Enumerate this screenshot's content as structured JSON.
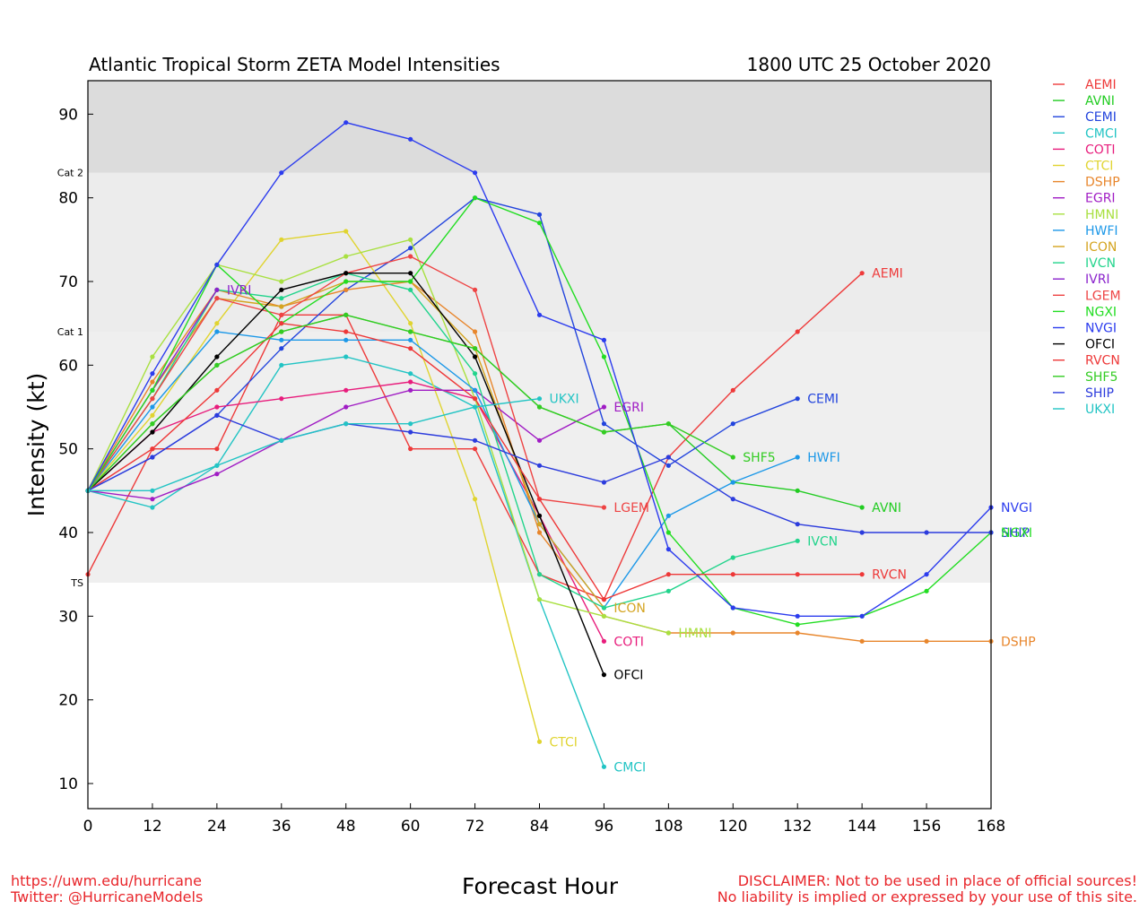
{
  "chart_data": {
    "type": "line",
    "title": "Atlantic Tropical Storm ZETA Model Intensities",
    "subtitle": "1800 UTC 25 October 2020",
    "xlabel": "Forecast Hour",
    "ylabel": "Intensity (kt)",
    "xlim": [
      0,
      168
    ],
    "ylim": [
      7,
      94
    ],
    "xticks": [
      0,
      12,
      24,
      36,
      48,
      60,
      72,
      84,
      96,
      108,
      120,
      132,
      144,
      156,
      168
    ],
    "yticks": [
      10,
      20,
      30,
      40,
      50,
      60,
      70,
      80,
      90
    ],
    "grid": false,
    "legend": "right",
    "bands": [
      {
        "label": "TS",
        "from": 34,
        "to": 64,
        "color": "#efefef"
      },
      {
        "label": "Cat 1",
        "from": 64,
        "to": 83,
        "color": "#ececec"
      },
      {
        "label": "Cat 2",
        "from": 83,
        "to": 94,
        "color": "#dcdcdc"
      }
    ],
    "category_labels": [
      {
        "text": "TS",
        "y": 34
      },
      {
        "text": "Cat 1",
        "y": 64
      },
      {
        "text": "Cat 2",
        "y": 83
      }
    ],
    "series": [
      {
        "name": "AEMI",
        "color": "#ee3a3a",
        "x": [
          0,
          12,
          24,
          36,
          48,
          60,
          72,
          84,
          96,
          108,
          120,
          132,
          144
        ],
        "values": [
          35,
          50,
          50,
          66,
          66,
          50,
          50,
          35,
          32,
          49,
          57,
          64,
          71
        ]
      },
      {
        "name": "AVNI",
        "color": "#22cc22",
        "x": [
          0,
          12,
          24,
          36,
          48,
          60,
          72,
          84,
          96,
          108,
          120,
          132,
          144
        ],
        "values": [
          45,
          53,
          60,
          64,
          66,
          64,
          62,
          55,
          52,
          53,
          46,
          45,
          43
        ]
      },
      {
        "name": "CEMI",
        "color": "#2244dd",
        "x": [
          0,
          12,
          24,
          36,
          48,
          60,
          72,
          84,
          96,
          108,
          120,
          132
        ],
        "values": [
          45,
          49,
          54,
          62,
          69,
          74,
          80,
          78,
          53,
          48,
          53,
          56
        ]
      },
      {
        "name": "CMCI",
        "color": "#22c4c4",
        "x": [
          0,
          12,
          24,
          36,
          48,
          60,
          72,
          84,
          96
        ],
        "values": [
          45,
          43,
          48,
          60,
          61,
          59,
          55,
          32,
          12
        ]
      },
      {
        "name": "COTI",
        "color": "#e81c7c",
        "x": [
          0,
          12,
          24,
          36,
          48,
          60,
          72,
          84,
          96
        ],
        "values": [
          45,
          52,
          55,
          56,
          57,
          58,
          56,
          42,
          27
        ]
      },
      {
        "name": "CTCI",
        "color": "#e0d430",
        "x": [
          0,
          12,
          24,
          36,
          48,
          60,
          72,
          84
        ],
        "values": [
          45,
          54,
          65,
          75,
          76,
          65,
          44,
          15
        ]
      },
      {
        "name": "DSHP",
        "color": "#e8862c",
        "x": [
          0,
          12,
          24,
          36,
          48,
          60,
          72,
          84,
          96,
          108,
          120,
          132,
          144,
          156,
          168
        ],
        "values": [
          45,
          58,
          69,
          67,
          69,
          70,
          64,
          40,
          30,
          28,
          28,
          28,
          27,
          27,
          27
        ]
      },
      {
        "name": "EGRI",
        "color": "#a01cc4",
        "x": [
          0,
          12,
          24,
          36,
          48,
          60,
          72,
          84,
          96
        ],
        "values": [
          45,
          44,
          47,
          51,
          55,
          57,
          57,
          51,
          55
        ]
      },
      {
        "name": "HMNI",
        "color": "#a8e040",
        "x": [
          0,
          12,
          24,
          36,
          48,
          60,
          72,
          84,
          96,
          108
        ],
        "values": [
          45,
          61,
          72,
          70,
          73,
          75,
          56,
          32,
          30,
          28
        ]
      },
      {
        "name": "HWFI",
        "color": "#1c98e8",
        "x": [
          0,
          12,
          24,
          36,
          48,
          60,
          72,
          84,
          96,
          108,
          120,
          132
        ],
        "values": [
          45,
          55,
          64,
          63,
          63,
          63,
          57,
          41,
          31,
          42,
          46,
          49
        ]
      },
      {
        "name": "ICON",
        "color": "#d4a420",
        "x": [
          0,
          12,
          24,
          36,
          48,
          60,
          72,
          84,
          96
        ],
        "values": [
          45,
          57,
          68,
          67,
          70,
          70,
          62,
          41,
          31
        ]
      },
      {
        "name": "IVCN",
        "color": "#22d48c",
        "x": [
          0,
          12,
          24,
          36,
          48,
          60,
          72,
          84,
          96,
          108,
          120,
          132
        ],
        "values": [
          45,
          56,
          69,
          68,
          71,
          69,
          59,
          35,
          31,
          33,
          37,
          39
        ]
      },
      {
        "name": "IVRI",
        "color": "#8a22cc",
        "x": [
          0,
          12,
          24
        ],
        "values": [
          45,
          57,
          69
        ]
      },
      {
        "name": "LGEM",
        "color": "#ee4444",
        "x": [
          0,
          12,
          24,
          36,
          48,
          60,
          72,
          84,
          96
        ],
        "values": [
          45,
          56,
          68,
          66,
          71,
          73,
          69,
          44,
          43
        ]
      },
      {
        "name": "NGXI",
        "color": "#22dd22",
        "x": [
          0,
          12,
          24,
          36,
          48,
          60,
          72,
          84,
          96,
          108,
          120,
          132,
          144,
          156,
          168
        ],
        "values": [
          45,
          57,
          72,
          65,
          70,
          70,
          80,
          77,
          61,
          40,
          31,
          29,
          30,
          33,
          40
        ]
      },
      {
        "name": "NVGI",
        "color": "#2c3cee",
        "x": [
          0,
          12,
          24,
          36,
          48,
          60,
          72,
          84,
          96,
          108,
          120,
          132,
          144,
          156,
          168
        ],
        "values": [
          45,
          59,
          72,
          83,
          89,
          87,
          83,
          66,
          63,
          38,
          31,
          30,
          30,
          35,
          43
        ]
      },
      {
        "name": "OFCI",
        "color": "#000000",
        "x": [
          0,
          12,
          24,
          36,
          48,
          60,
          72,
          84,
          96
        ],
        "values": [
          45,
          52,
          61,
          69,
          71,
          71,
          61,
          42,
          23
        ]
      },
      {
        "name": "RVCN",
        "color": "#ee3838",
        "x": [
          0,
          12,
          24,
          36,
          48,
          60,
          72,
          84,
          96,
          108,
          120,
          132,
          144
        ],
        "values": [
          45,
          50,
          57,
          65,
          64,
          62,
          56,
          44,
          32,
          35,
          35,
          35,
          35
        ]
      },
      {
        "name": "SHF5",
        "color": "#33cc22",
        "x": [
          0,
          12,
          24,
          36,
          48,
          60,
          72,
          84,
          96,
          108,
          120
        ],
        "values": [
          45,
          53,
          60,
          64,
          66,
          64,
          62,
          55,
          52,
          53,
          49
        ]
      },
      {
        "name": "SHIP",
        "color": "#2c3cdd",
        "x": [
          0,
          12,
          24,
          36,
          48,
          60,
          72,
          84,
          96,
          108,
          120,
          132,
          144,
          156,
          168
        ],
        "values": [
          45,
          49,
          54,
          51,
          53,
          52,
          51,
          48,
          46,
          49,
          44,
          41,
          40,
          40,
          40
        ]
      },
      {
        "name": "UKXI",
        "color": "#22c4c4",
        "x": [
          0,
          12,
          24,
          36,
          48,
          60,
          72,
          84
        ],
        "values": [
          45,
          45,
          48,
          51,
          53,
          53,
          55,
          56
        ]
      }
    ],
    "end_labels": [
      {
        "text": "AEMI",
        "series": "AEMI"
      },
      {
        "text": "AVNI",
        "series": "AVNI"
      },
      {
        "text": "CEMI",
        "series": "CEMI"
      },
      {
        "text": "CMCI",
        "series": "CMCI"
      },
      {
        "text": "COTI",
        "series": "COTI"
      },
      {
        "text": "CTCI",
        "series": "CTCI"
      },
      {
        "text": "DSHP",
        "series": "DSHP"
      },
      {
        "text": "EGRI",
        "series": "EGRI"
      },
      {
        "text": "HMNI",
        "series": "HMNI"
      },
      {
        "text": "HWFI",
        "series": "HWFI"
      },
      {
        "text": "ICON",
        "series": "ICON"
      },
      {
        "text": "IVCN",
        "series": "IVCN"
      },
      {
        "text": "IVRI",
        "series": "IVRI"
      },
      {
        "text": "LGEM",
        "series": "LGEM"
      },
      {
        "text": "NVGI",
        "series": "NVGI"
      },
      {
        "text": "OFCI",
        "series": "OFCI"
      },
      {
        "text": "RVCN",
        "series": "RVCN"
      },
      {
        "text": "SHF5",
        "series": "SHF5"
      },
      {
        "text": "SHIP",
        "series": "SHIP"
      },
      {
        "text": "UKXI",
        "series": "UKXI"
      },
      {
        "text": "NGXI",
        "series": "NGXI"
      }
    ]
  },
  "footer": {
    "left_line1": "https://uwm.edu/hurricane",
    "left_line2": "Twitter: @HurricaneModels",
    "right_line1": "DISCLAIMER: Not to be used in place of official sources!",
    "right_line2": "No liability is implied or expressed by your use of this site."
  }
}
